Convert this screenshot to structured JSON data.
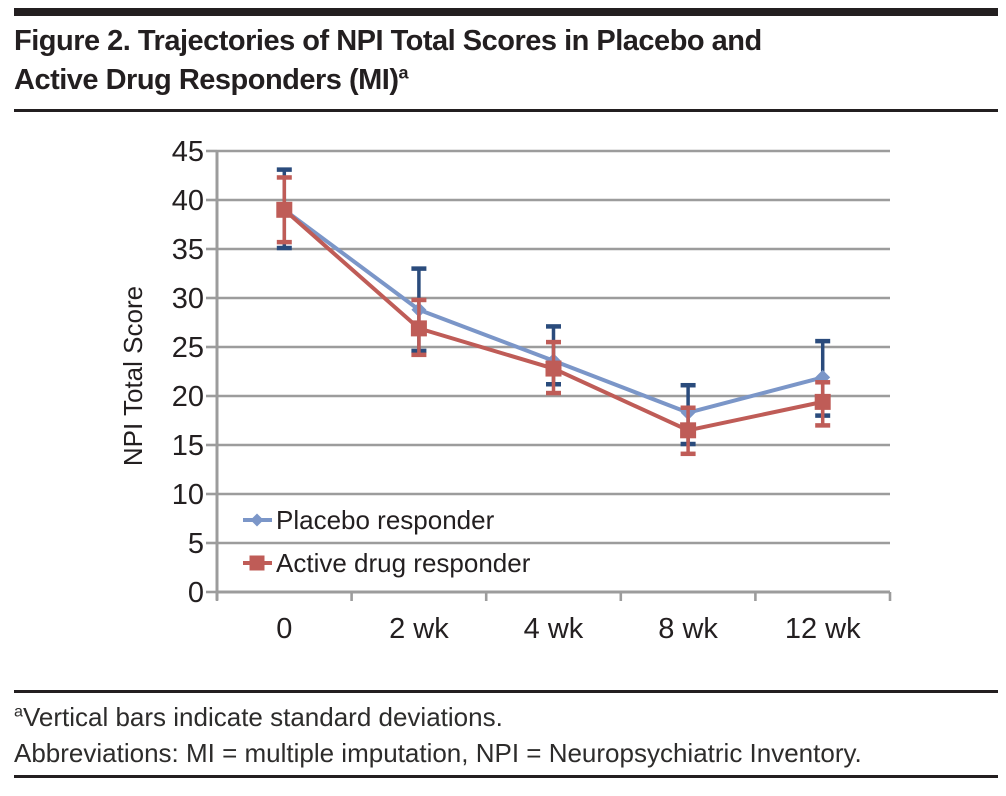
{
  "title": {
    "line1": "Figure 2. Trajectories of NPI Total Scores in Placebo and",
    "line2_text": "Active Drug Responders (MI)",
    "line2_sup": "a"
  },
  "footer": {
    "note_sup": "a",
    "note_text": "Vertical bars indicate standard deviations.",
    "abbreviations": "Abbreviations: MI = multiple imputation, NPI = Neuropsychiatric Inventory."
  },
  "colors": {
    "rule": "#231f20",
    "grid": "#9c9c9c",
    "axis": "#9c9c9c",
    "text": "#231f20",
    "placebo": "#7b96c8",
    "placebo_error": "#2a4b7c",
    "active": "#bf5c57",
    "active_error": "#bf5c57"
  },
  "chart_data": {
    "type": "line",
    "title": "",
    "xlabel": "",
    "ylabel": "NPI Total Score",
    "categories": [
      "0",
      "2 wk",
      "4 wk",
      "8 wk",
      "12 wk"
    ],
    "ylim": [
      0,
      45
    ],
    "yticks": [
      0,
      5,
      10,
      15,
      20,
      25,
      30,
      35,
      40,
      45
    ],
    "grid": true,
    "legend_position": "inside-bottom-left",
    "error_bar_meaning": "standard deviation",
    "series": [
      {
        "name": "Placebo responder",
        "marker": "diamond",
        "color": "#7b96c8",
        "error_color": "#2a4b7c",
        "values": [
          39.0,
          28.8,
          23.6,
          18.3,
          21.9
        ],
        "error_top": [
          43.1,
          33.0,
          27.1,
          21.1,
          25.6
        ],
        "error_bottom": [
          35.1,
          24.6,
          21.2,
          15.1,
          18.0
        ]
      },
      {
        "name": "Active drug responder",
        "marker": "square",
        "color": "#bf5c57",
        "error_color": "#bf5c57",
        "values": [
          39.0,
          26.9,
          22.8,
          16.5,
          19.4
        ],
        "error_top": [
          42.3,
          29.8,
          25.5,
          18.8,
          21.4
        ],
        "error_bottom": [
          35.7,
          24.2,
          20.3,
          14.1,
          17.0
        ]
      }
    ]
  }
}
